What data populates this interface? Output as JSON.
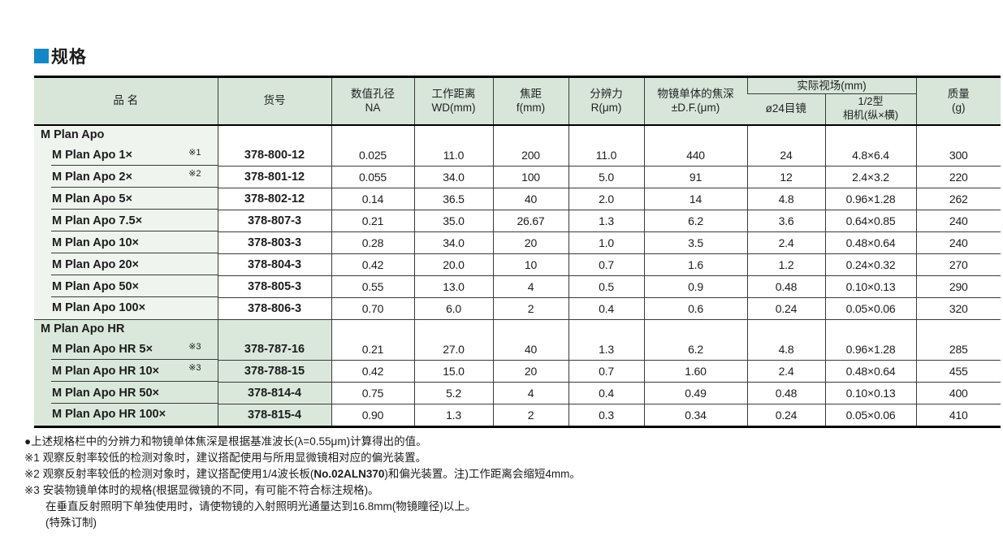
{
  "page": {
    "section_title": "规格"
  },
  "colors": {
    "accent_blue": "#1487c8",
    "header_green": "#d7e6d9",
    "highlight_green": "#d9e8da",
    "name_column_tint": "#eff4ef"
  },
  "table": {
    "headers": {
      "name": "品 名",
      "code": "货号",
      "na1": "数值孔径",
      "na2": "NA",
      "wd1": "工作距离",
      "wd2": "WD(mm)",
      "f1": "焦距",
      "f2": "f(mm)",
      "r1": "分辨力",
      "r2": "R(μm)",
      "df1": "物镜单体的焦深",
      "df2": "±D.F.(μm)",
      "fov": "实际视场(mm)",
      "fov_eyepiece": "ø24目镜",
      "cam1": "1/2型",
      "cam2": "相机(纵×横)",
      "mass1": "质量",
      "mass2": "(g)"
    },
    "groups": [
      {
        "label": "M Plan Apo",
        "highlight": false,
        "rows": [
          {
            "name": "M Plan Apo 1×",
            "note": "※1",
            "code": "378-800-12",
            "na": "0.025",
            "wd": "11.0",
            "f": "200",
            "r": "11.0",
            "df": "440",
            "fov_eyepiece": "24",
            "fov_camera": "4.8×6.4",
            "mass": "300"
          },
          {
            "name": "M Plan Apo 2×",
            "note": "※2",
            "code": "378-801-12",
            "na": "0.055",
            "wd": "34.0",
            "f": "100",
            "r": "5.0",
            "df": "91",
            "fov_eyepiece": "12",
            "fov_camera": "2.4×3.2",
            "mass": "220"
          },
          {
            "name": "M Plan Apo 5×",
            "note": "",
            "code": "378-802-12",
            "na": "0.14",
            "wd": "36.5",
            "f": "40",
            "r": "2.0",
            "df": "14",
            "fov_eyepiece": "4.8",
            "fov_camera": "0.96×1.28",
            "mass": "262"
          },
          {
            "name": "M Plan Apo 7.5×",
            "note": "",
            "code": "378-807-3",
            "na": "0.21",
            "wd": "35.0",
            "f": "26.67",
            "r": "1.3",
            "df": "6.2",
            "fov_eyepiece": "3.6",
            "fov_camera": "0.64×0.85",
            "mass": "240"
          },
          {
            "name": "M Plan Apo 10×",
            "note": "",
            "code": "378-803-3",
            "na": "0.28",
            "wd": "34.0",
            "f": "20",
            "r": "1.0",
            "df": "3.5",
            "fov_eyepiece": "2.4",
            "fov_camera": "0.48×0.64",
            "mass": "240"
          },
          {
            "name": "M Plan Apo 20×",
            "note": "",
            "code": "378-804-3",
            "na": "0.42",
            "wd": "20.0",
            "f": "10",
            "r": "0.7",
            "df": "1.6",
            "fov_eyepiece": "1.2",
            "fov_camera": "0.24×0.32",
            "mass": "270"
          },
          {
            "name": "M Plan Apo 50×",
            "note": "",
            "code": "378-805-3",
            "na": "0.55",
            "wd": "13.0",
            "f": "4",
            "r": "0.5",
            "df": "0.9",
            "fov_eyepiece": "0.48",
            "fov_camera": "0.10×0.13",
            "mass": "290"
          },
          {
            "name": "M Plan Apo 100×",
            "note": "",
            "code": "378-806-3",
            "na": "0.70",
            "wd": "6.0",
            "f": "2",
            "r": "0.4",
            "df": "0.6",
            "fov_eyepiece": "0.24",
            "fov_camera": "0.05×0.06",
            "mass": "320"
          }
        ]
      },
      {
        "label": "M Plan Apo HR",
        "highlight": true,
        "rows": [
          {
            "name": "M Plan Apo HR 5×",
            "note": "※3",
            "code": "378-787-16",
            "na": "0.21",
            "wd": "27.0",
            "f": "40",
            "r": "1.3",
            "df": "6.2",
            "fov_eyepiece": "4.8",
            "fov_camera": "0.96×1.28",
            "mass": "285"
          },
          {
            "name": "M Plan Apo HR 10×",
            "note": "※3",
            "code": "378-788-15",
            "na": "0.42",
            "wd": "15.0",
            "f": "20",
            "r": "0.7",
            "df": "1.60",
            "fov_eyepiece": "2.4",
            "fov_camera": "0.48×0.64",
            "mass": "455"
          },
          {
            "name": "M Plan Apo HR 50×",
            "note": "",
            "code": "378-814-4",
            "na": "0.75",
            "wd": "5.2",
            "f": "4",
            "r": "0.4",
            "df": "0.49",
            "fov_eyepiece": "0.48",
            "fov_camera": "0.10×0.13",
            "mass": "400"
          },
          {
            "name": "M Plan Apo HR 100×",
            "note": "",
            "code": "378-815-4",
            "na": "0.90",
            "wd": "1.3",
            "f": "2",
            "r": "0.3",
            "df": "0.34",
            "fov_eyepiece": "0.24",
            "fov_camera": "0.05×0.06",
            "mass": "410"
          }
        ]
      }
    ]
  },
  "footnotes": {
    "base": "●上述规格栏中的分辨力和物镜单体焦深是根据基准波长(λ=0.55μm)计算得出的值。",
    "n1": "※1 观察反射率较低的检测对象时，建议搭配使用与所用显微镜相对应的偏光装置。",
    "n2_pre": "※2 观察反射率较低的检测对象时，建议搭配使用1/4波长板(",
    "n2_bold": "No.02ALN370",
    "n2_post": ")和偏光装置。注)工作距离会缩短4mm。",
    "n3": "※3 安装物镜单体时的规格(根据显微镜的不同，有可能不符合标注规格)。",
    "n3b": "在垂直反射照明下单独使用时，请使物镜的入射照明光通量达到16.8mm(物镜瞳径)以上。",
    "n3c": "(特殊订制)"
  }
}
